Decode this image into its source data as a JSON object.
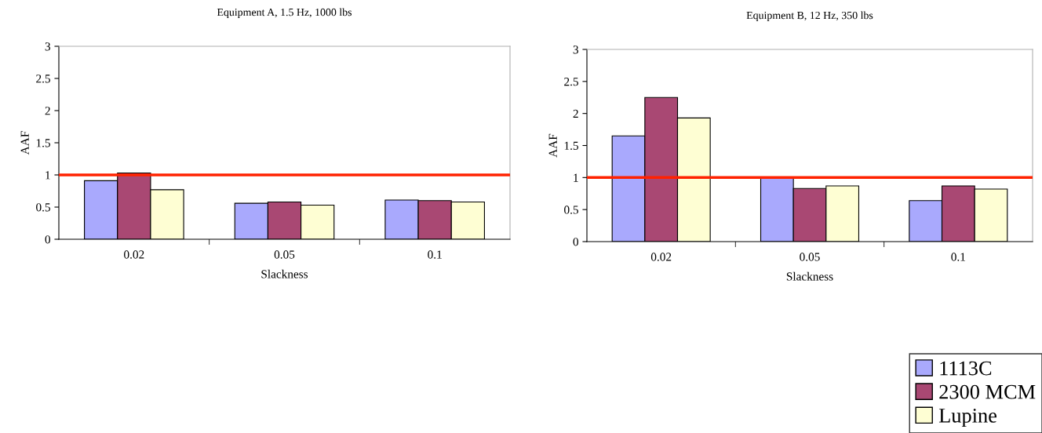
{
  "chart_data": [
    {
      "type": "bar",
      "title": "Equipment A, 1.5 Hz, 1000 lbs",
      "xlabel": "Slackness",
      "ylabel": "AAF",
      "categories": [
        "0.02",
        "0.05",
        "0.1"
      ],
      "series": [
        {
          "name": "1113C",
          "color": "#a9a9fd",
          "values": [
            0.91,
            0.56,
            0.61
          ]
        },
        {
          "name": "2300 MCM",
          "color": "#a94873",
          "values": [
            1.03,
            0.58,
            0.6
          ]
        },
        {
          "name": "Lupine",
          "color": "#fefed3",
          "values": [
            0.77,
            0.53,
            0.58
          ]
        }
      ],
      "ylim": [
        0,
        3
      ],
      "yticks": [
        0,
        0.5,
        1,
        1.5,
        2,
        2.5,
        3
      ],
      "grid": false,
      "legend": "bottom right",
      "ref_lines": [
        {
          "axis": "y",
          "value": 1,
          "color": "#ff2200"
        }
      ]
    },
    {
      "type": "bar",
      "title": "Equipment B, 12 Hz, 350 lbs",
      "xlabel": "Slackness",
      "ylabel": "AAF",
      "categories": [
        "0.02",
        "0.05",
        "0.1"
      ],
      "series": [
        {
          "name": "1113C",
          "color": "#a9a9fd",
          "values": [
            1.65,
            1.0,
            0.64
          ]
        },
        {
          "name": "2300 MCM",
          "color": "#a94873",
          "values": [
            2.25,
            0.83,
            0.87
          ]
        },
        {
          "name": "Lupine",
          "color": "#fefed3",
          "values": [
            1.93,
            0.87,
            0.82
          ]
        }
      ],
      "ylim": [
        0,
        3
      ],
      "yticks": [
        0,
        0.5,
        1,
        1.5,
        2,
        2.5,
        3
      ],
      "grid": false,
      "legend": "bottom right",
      "ref_lines": [
        {
          "axis": "y",
          "value": 1,
          "color": "#ff2200"
        }
      ]
    }
  ]
}
